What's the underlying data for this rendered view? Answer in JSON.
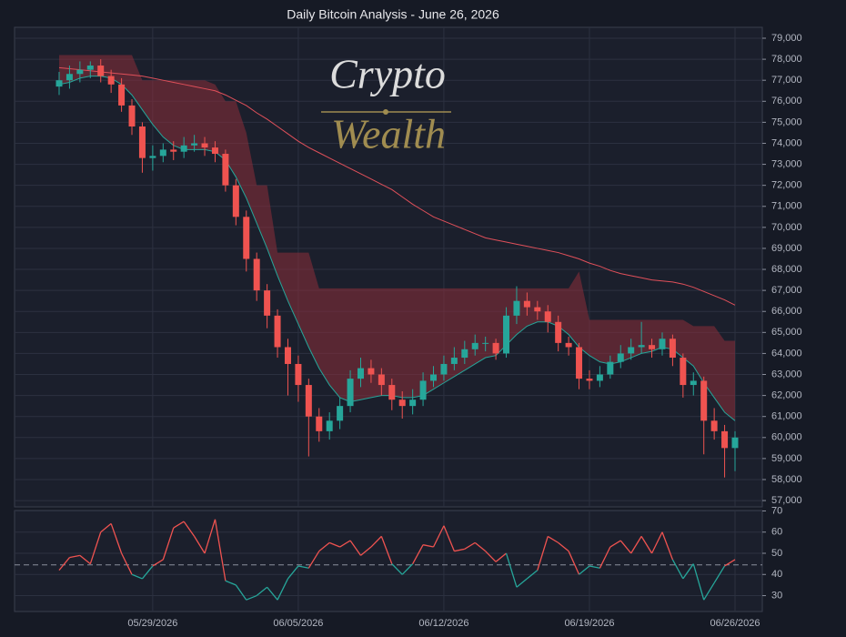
{
  "chart_data": {
    "type": "candlestick",
    "title": "Daily Bitcoin Analysis - June 26, 2026",
    "watermark": {
      "line1": "Crypto",
      "line2": "Wealth"
    },
    "categories": [
      null,
      null,
      null,
      null,
      null,
      null,
      null,
      null,
      null,
      "05/29/2026",
      null,
      null,
      null,
      null,
      null,
      null,
      null,
      null,
      null,
      null,
      null,
      null,
      null,
      "06/05/2026",
      null,
      null,
      null,
      null,
      null,
      null,
      null,
      null,
      null,
      null,
      null,
      null,
      null,
      "06/12/2026",
      null,
      null,
      null,
      null,
      null,
      null,
      null,
      null,
      null,
      null,
      null,
      null,
      null,
      "06/19/2026",
      null,
      null,
      null,
      null,
      null,
      null,
      null,
      null,
      null,
      null,
      null,
      null,
      null,
      "06/26/2026"
    ],
    "open": [
      76700,
      77000,
      77300,
      77500,
      77700,
      77200,
      76800,
      75800,
      74800,
      73300,
      73400,
      73700,
      73600,
      73900,
      74000,
      73800,
      73500,
      72000,
      70500,
      68500,
      67000,
      65800,
      64300,
      63500,
      62500,
      61000,
      60300,
      60800,
      61500,
      62800,
      63300,
      63000,
      62500,
      61800,
      61500,
      61800,
      62700,
      63000,
      63500,
      63800,
      64200,
      64500,
      64500,
      64000,
      65800,
      66500,
      66200,
      66000,
      65500,
      64500,
      64300,
      62800,
      62700,
      63000,
      63600,
      64000,
      64300,
      64400,
      64200,
      64700,
      63800,
      62500,
      62700,
      60800,
      60300,
      59500
    ],
    "high": [
      77400,
      77700,
      77900,
      77900,
      78000,
      77500,
      77100,
      76100,
      75000,
      73900,
      74000,
      74100,
      74300,
      74400,
      74300,
      74100,
      73700,
      72300,
      70800,
      68800,
      67300,
      66100,
      64700,
      63900,
      62800,
      61400,
      61200,
      61900,
      63200,
      63800,
      63700,
      63300,
      62800,
      62200,
      62300,
      63100,
      63400,
      63900,
      64300,
      64600,
      64900,
      64800,
      64700,
      66200,
      67200,
      66900,
      66500,
      66300,
      65800,
      64800,
      64500,
      63200,
      63400,
      63900,
      64400,
      64700,
      65500,
      64700,
      65000,
      64900,
      64000,
      63100,
      62900,
      61400,
      60600,
      60300
    ],
    "low": [
      76300,
      76600,
      76900,
      77100,
      76900,
      76400,
      75500,
      74400,
      72600,
      72700,
      73100,
      73200,
      73300,
      73600,
      73400,
      73100,
      71700,
      70100,
      67900,
      66500,
      65200,
      63800,
      62000,
      61700,
      59100,
      59800,
      59900,
      60400,
      61200,
      62400,
      62600,
      62000,
      61300,
      60900,
      61100,
      61500,
      62400,
      62700,
      63200,
      63500,
      63900,
      64100,
      63700,
      63800,
      65400,
      65800,
      65600,
      65000,
      64100,
      63900,
      62300,
      62300,
      62400,
      62800,
      63300,
      63700,
      64000,
      63800,
      63900,
      63400,
      61900,
      62000,
      59200,
      59900,
      58100,
      58400
    ],
    "close": [
      77000,
      77300,
      77500,
      77700,
      77200,
      76800,
      75800,
      74800,
      73300,
      73400,
      73700,
      73600,
      73900,
      74000,
      73800,
      73500,
      72000,
      70500,
      68500,
      67000,
      65800,
      64300,
      63500,
      62500,
      61000,
      60300,
      60800,
      61500,
      62800,
      63300,
      63000,
      62500,
      61800,
      61500,
      61800,
      62700,
      63000,
      63500,
      63800,
      64200,
      64500,
      64500,
      64000,
      65800,
      66500,
      66200,
      66000,
      65500,
      64500,
      64300,
      62800,
      62700,
      63000,
      63600,
      64000,
      64300,
      64400,
      64200,
      64700,
      63800,
      62500,
      62700,
      60800,
      60300,
      59500,
      60000
    ],
    "up_color": "#26a69a",
    "down_color": "#ef5350",
    "ma_slow": {
      "color": "#e0505a",
      "values": [
        77600,
        77550,
        77500,
        77450,
        77400,
        77350,
        77300,
        77250,
        77200,
        77100,
        77000,
        76900,
        76800,
        76700,
        76600,
        76500,
        76300,
        76050,
        75800,
        75450,
        75150,
        74800,
        74450,
        74100,
        73800,
        73550,
        73300,
        73050,
        72800,
        72550,
        72300,
        72050,
        71800,
        71450,
        71100,
        70800,
        70500,
        70300,
        70100,
        69900,
        69700,
        69500,
        69400,
        69300,
        69200,
        69100,
        69000,
        68900,
        68800,
        68650,
        68500,
        68300,
        68150,
        67950,
        67800,
        67700,
        67600,
        67500,
        67450,
        67400,
        67300,
        67150,
        66950,
        66750,
        66550,
        66300
      ]
    },
    "ma_fast": {
      "color": "#26a69a",
      "values": [
        76800,
        76900,
        77100,
        77200,
        77200,
        77100,
        76800,
        76300,
        75600,
        74900,
        74300,
        73900,
        73700,
        73700,
        73700,
        73600,
        73200,
        72400,
        71400,
        70200,
        69000,
        67700,
        66500,
        65400,
        64300,
        63300,
        62500,
        61900,
        61700,
        61800,
        61900,
        62000,
        62000,
        61900,
        61900,
        62000,
        62300,
        62600,
        62900,
        63200,
        63500,
        63800,
        63900,
        64400,
        64900,
        65300,
        65500,
        65500,
        65300,
        64900,
        64300,
        63900,
        63600,
        63500,
        63600,
        63800,
        64000,
        64100,
        64300,
        64200,
        63800,
        63400,
        62600,
        61900,
        61200,
        60800
      ]
    },
    "band_upper": {
      "color": "#8c2e3a",
      "values": [
        78200,
        78200,
        78200,
        78200,
        78200,
        78200,
        78200,
        78200,
        77000,
        77000,
        77000,
        77000,
        77000,
        77000,
        77000,
        76800,
        76000,
        76000,
        74500,
        72000,
        72000,
        68800,
        68800,
        68800,
        68800,
        67100,
        67100,
        67100,
        67100,
        67100,
        67100,
        67100,
        67100,
        67100,
        67100,
        67100,
        67100,
        67100,
        67100,
        67100,
        67100,
        67100,
        67100,
        67100,
        67100,
        67100,
        67100,
        67100,
        67100,
        67100,
        67900,
        65600,
        65600,
        65600,
        65600,
        65600,
        65600,
        65600,
        65600,
        65600,
        65600,
        65300,
        65300,
        65300,
        64600,
        64600
      ]
    },
    "ylim": [
      56700,
      79520
    ],
    "yticks": [
      {
        "value": 57000,
        "label": "57,000"
      },
      {
        "value": 58000,
        "label": "58,000"
      },
      {
        "value": 59000,
        "label": "59,000"
      },
      {
        "value": 60000,
        "label": "60,000"
      },
      {
        "value": 61000,
        "label": "61,000"
      },
      {
        "value": 62000,
        "label": "62,000"
      },
      {
        "value": 63000,
        "label": "63,000"
      },
      {
        "value": 64000,
        "label": "64,000"
      },
      {
        "value": 65000,
        "label": "65,000"
      },
      {
        "value": 66000,
        "label": "66,000"
      },
      {
        "value": 67000,
        "label": "67,000"
      },
      {
        "value": 68000,
        "label": "68,000"
      },
      {
        "value": 69000,
        "label": "69,000"
      },
      {
        "value": 70000,
        "label": "70,000"
      },
      {
        "value": 71000,
        "label": "71,000"
      },
      {
        "value": 72000,
        "label": "72,000"
      },
      {
        "value": 73000,
        "label": "73,000"
      },
      {
        "value": 74000,
        "label": "74,000"
      },
      {
        "value": 75000,
        "label": "75,000"
      },
      {
        "value": 76000,
        "label": "76,000"
      },
      {
        "value": 77000,
        "label": "77,000"
      },
      {
        "value": 78000,
        "label": "78,000"
      },
      {
        "value": 79000,
        "label": "79,000"
      }
    ],
    "grid": true,
    "rsi": {
      "values": [
        42,
        48,
        49,
        45,
        60,
        64,
        50,
        40,
        38,
        44,
        47,
        62,
        65,
        58,
        50,
        66,
        37,
        35,
        28,
        30,
        34,
        28,
        38,
        44,
        43,
        51,
        55,
        53,
        56,
        49,
        53,
        58,
        45,
        40,
        45,
        54,
        53,
        63,
        51,
        52,
        55,
        51,
        46,
        50,
        34,
        38,
        42,
        58,
        55,
        51,
        40,
        44,
        43,
        53,
        56,
        50,
        58,
        50,
        60,
        47,
        38,
        45,
        28,
        36,
        44,
        47
      ],
      "threshold": 44.5,
      "color_above": "#ef5350",
      "color_below": "#26a69a",
      "threshold_color": "#8a8f9c",
      "ylim": [
        22.5,
        70.2
      ],
      "yticks": [
        30,
        40,
        50,
        60,
        70
      ]
    }
  }
}
